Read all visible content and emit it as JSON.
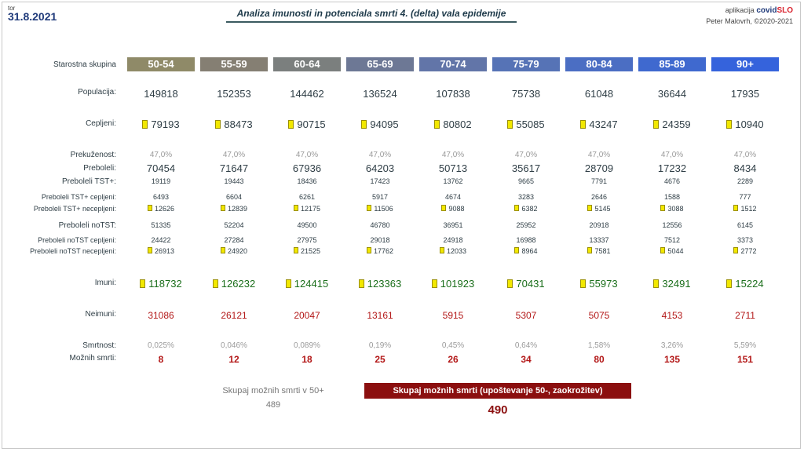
{
  "header": {
    "day": "tor",
    "date": "31.8.2021",
    "title": "Analiza imunosti in potenciala smrti 4. (delta) vala epidemije",
    "app_prefix": "aplikacija",
    "brand_a": "covid",
    "brand_b": "SLO",
    "credit": "Peter Malovrh, ©2020-2021"
  },
  "labels": {
    "age": "Starostna skupina",
    "population": "Populacija:",
    "vaccinated": "Cepljeni:",
    "overcome_pct": "Prekuženost:",
    "recovered": "Preboleli:",
    "tst_plus": "Preboleli TST+:",
    "tst_plus_vacc": "Preboleli TST+ cepljeni:",
    "tst_plus_unvacc": "Preboleli TST+ necepljeni:",
    "notst": "Preboleli noTST:",
    "notst_vacc": "Preboleli noTST cepljeni:",
    "notst_unvacc": "Preboleli noTST necepljeni:",
    "immune": "Imuni:",
    "nonimmune": "Neimuni:",
    "mortality": "Smrtnost:",
    "deaths": "Možnih smrti:"
  },
  "groups": [
    {
      "age": "50-54",
      "color": "#8f8a68",
      "population": "149818",
      "vaccinated": "79193",
      "overcome": "47,0%",
      "recovered": "70454",
      "tst_plus": "19119",
      "tst_vacc": "6493",
      "tst_unvacc": "12626",
      "notst": "51335",
      "notst_vacc": "24422",
      "notst_unvacc": "26913",
      "immune": "118732",
      "nonimmune": "31086",
      "mortality": "0,025%",
      "deaths": "8"
    },
    {
      "age": "55-59",
      "color": "#857f73",
      "population": "152353",
      "vaccinated": "88473",
      "overcome": "47,0%",
      "recovered": "71647",
      "tst_plus": "19443",
      "tst_vacc": "6604",
      "tst_unvacc": "12839",
      "notst": "52204",
      "notst_vacc": "27284",
      "notst_unvacc": "24920",
      "immune": "126232",
      "nonimmune": "26121",
      "mortality": "0,046%",
      "deaths": "12"
    },
    {
      "age": "60-64",
      "color": "#7b7f7e",
      "population": "144462",
      "vaccinated": "90715",
      "overcome": "47,0%",
      "recovered": "67936",
      "tst_plus": "18436",
      "tst_vacc": "6261",
      "tst_unvacc": "12175",
      "notst": "49500",
      "notst_vacc": "27975",
      "notst_unvacc": "21525",
      "immune": "124415",
      "nonimmune": "20047",
      "mortality": "0,089%",
      "deaths": "18"
    },
    {
      "age": "65-69",
      "color": "#6d7895",
      "population": "136524",
      "vaccinated": "94095",
      "overcome": "47,0%",
      "recovered": "64203",
      "tst_plus": "17423",
      "tst_vacc": "5917",
      "tst_unvacc": "11506",
      "notst": "46780",
      "notst_vacc": "29018",
      "notst_unvacc": "17762",
      "immune": "123363",
      "nonimmune": "13161",
      "mortality": "0,19%",
      "deaths": "25"
    },
    {
      "age": "70-74",
      "color": "#6275a8",
      "population": "107838",
      "vaccinated": "80802",
      "overcome": "47,0%",
      "recovered": "50713",
      "tst_plus": "13762",
      "tst_vacc": "4674",
      "tst_unvacc": "9088",
      "notst": "36951",
      "notst_vacc": "24918",
      "notst_unvacc": "12033",
      "immune": "101923",
      "nonimmune": "5915",
      "mortality": "0,45%",
      "deaths": "26"
    },
    {
      "age": "75-79",
      "color": "#5673b6",
      "population": "75738",
      "vaccinated": "55085",
      "overcome": "47,0%",
      "recovered": "35617",
      "tst_plus": "9665",
      "tst_vacc": "3283",
      "tst_unvacc": "6382",
      "notst": "25952",
      "notst_vacc": "16988",
      "notst_unvacc": "8964",
      "immune": "70431",
      "nonimmune": "5307",
      "mortality": "0,64%",
      "deaths": "34"
    },
    {
      "age": "80-84",
      "color": "#4b6ec3",
      "population": "61048",
      "vaccinated": "43247",
      "overcome": "47,0%",
      "recovered": "28709",
      "tst_plus": "7791",
      "tst_vacc": "2646",
      "tst_unvacc": "5145",
      "notst": "20918",
      "notst_vacc": "13337",
      "notst_unvacc": "7581",
      "immune": "55973",
      "nonimmune": "5075",
      "mortality": "1,58%",
      "deaths": "80"
    },
    {
      "age": "85-89",
      "color": "#3f69cf",
      "population": "36644",
      "vaccinated": "24359",
      "overcome": "47,0%",
      "recovered": "17232",
      "tst_plus": "4676",
      "tst_vacc": "1588",
      "tst_unvacc": "3088",
      "notst": "12556",
      "notst_vacc": "7512",
      "notst_unvacc": "5044",
      "immune": "32491",
      "nonimmune": "4153",
      "mortality": "3,26%",
      "deaths": "135"
    },
    {
      "age": "90+",
      "color": "#3563dc",
      "population": "17935",
      "vaccinated": "10940",
      "overcome": "47,0%",
      "recovered": "8434",
      "tst_plus": "2289",
      "tst_vacc": "777",
      "tst_unvacc": "1512",
      "notst": "6145",
      "notst_vacc": "3373",
      "notst_unvacc": "2772",
      "immune": "15224",
      "nonimmune": "2711",
      "mortality": "5,59%",
      "deaths": "151"
    }
  ],
  "totals": {
    "label_50plus": "Skupaj možnih smrti v 50+",
    "value_50plus": "489",
    "label_rounded": "Skupaj možnih smrti (upoštevanje 50-, zaokrožitev)",
    "value_rounded": "490"
  },
  "marker_color": "#f2e800"
}
